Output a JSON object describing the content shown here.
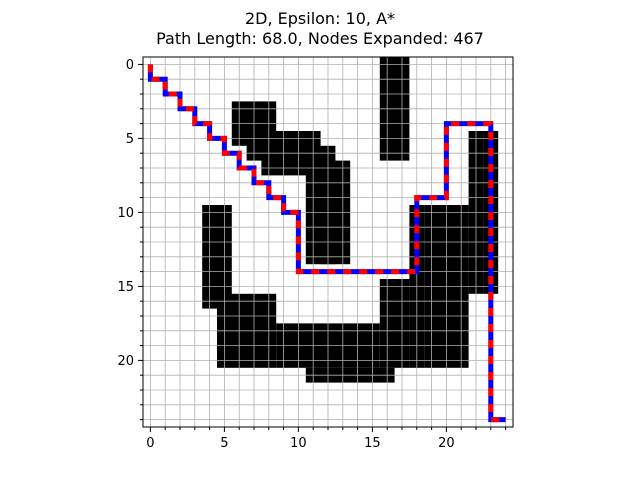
{
  "chart_data": {
    "type": "heatmap",
    "title": "2D, Epsilon: 10, A*",
    "subtitle": "Path Length: 68.0, Nodes Expanded: 467",
    "xlabel": "",
    "ylabel": "",
    "grid_size": [
      25,
      25
    ],
    "xlim": [
      -0.5,
      24.5
    ],
    "ylim": [
      24.5,
      -0.5
    ],
    "grid": true,
    "xticks": [
      0,
      5,
      10,
      15,
      20
    ],
    "yticks": [
      0,
      5,
      10,
      15,
      20
    ],
    "obstacles": [
      [
        16,
        0,
        17,
        6
      ],
      [
        6,
        3,
        8,
        5
      ],
      [
        7,
        5,
        11,
        6
      ],
      [
        8,
        6,
        11,
        7
      ],
      [
        11,
        6,
        12,
        13
      ],
      [
        12,
        7,
        13,
        13
      ],
      [
        4,
        10,
        5,
        16
      ],
      [
        23,
        5,
        23,
        15
      ],
      [
        22,
        5,
        22,
        15
      ],
      [
        19,
        10,
        21,
        20
      ],
      [
        18,
        10,
        18,
        20
      ],
      [
        16,
        15,
        17,
        20
      ],
      [
        5,
        16,
        8,
        20
      ],
      [
        9,
        18,
        15,
        20
      ],
      [
        11,
        21,
        16,
        21
      ]
    ],
    "path": [
      [
        0,
        0
      ],
      [
        0,
        1
      ],
      [
        1,
        1
      ],
      [
        1,
        2
      ],
      [
        2,
        2
      ],
      [
        2,
        3
      ],
      [
        3,
        3
      ],
      [
        3,
        4
      ],
      [
        4,
        4
      ],
      [
        4,
        5
      ],
      [
        5,
        5
      ],
      [
        5,
        6
      ],
      [
        6,
        6
      ],
      [
        6,
        7
      ],
      [
        7,
        7
      ],
      [
        7,
        8
      ],
      [
        8,
        8
      ],
      [
        8,
        9
      ],
      [
        9,
        9
      ],
      [
        9,
        10
      ],
      [
        10,
        10
      ],
      [
        10,
        14
      ],
      [
        18,
        14
      ],
      [
        18,
        9
      ],
      [
        20,
        9
      ],
      [
        20,
        4
      ],
      [
        23,
        4
      ],
      [
        23,
        24
      ],
      [
        24,
        24
      ]
    ],
    "path_colors": [
      "#0000ff",
      "#ff0000"
    ],
    "obstacle_color": "#000000"
  }
}
